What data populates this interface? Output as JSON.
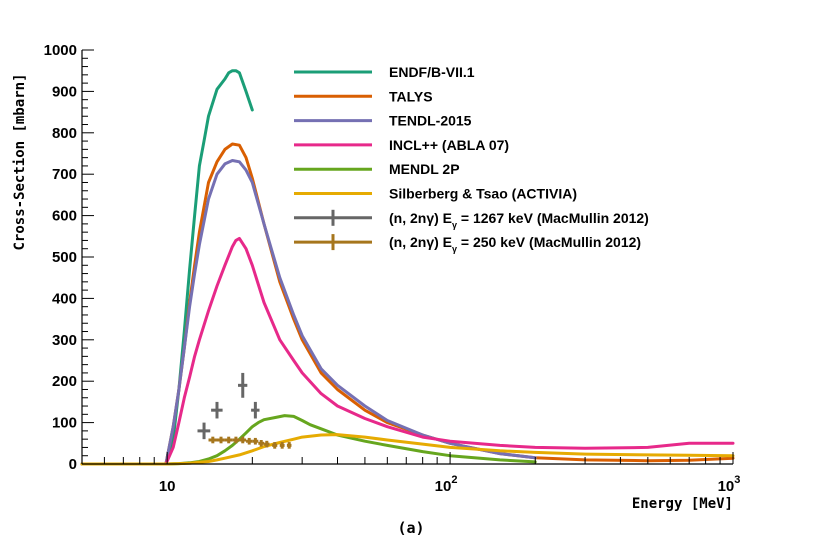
{
  "chart_data": {
    "type": "line",
    "panel_label": "(a)",
    "xlabel": "Energy [MeV]",
    "ylabel": "Cross-Section [mbarn]",
    "xscale": "log",
    "xlim": [
      5,
      1000
    ],
    "ylim": [
      0,
      1000
    ],
    "grid": false,
    "legend_position": "top-center",
    "y_ticks": [
      {
        "value": 0,
        "label": "0"
      },
      {
        "value": 100,
        "label": "100"
      },
      {
        "value": 200,
        "label": "200"
      },
      {
        "value": 300,
        "label": "300"
      },
      {
        "value": 400,
        "label": "400"
      },
      {
        "value": 500,
        "label": "500"
      },
      {
        "value": 600,
        "label": "600"
      },
      {
        "value": 700,
        "label": "700"
      },
      {
        "value": 800,
        "label": "800"
      },
      {
        "value": 900,
        "label": "900"
      },
      {
        "value": 1000,
        "label": "1000"
      }
    ],
    "x_ticks": [
      {
        "value": 10,
        "base": "10",
        "exp": ""
      },
      {
        "value": 100,
        "base": "10",
        "exp": "2"
      },
      {
        "value": 1000,
        "base": "10",
        "exp": "3"
      }
    ],
    "series": [
      {
        "name": "ENDF/B-VII.1",
        "color": "#1b9e77",
        "kind": "line",
        "x": [
          5,
          9.9,
          10.5,
          11,
          11.5,
          12,
          12.5,
          13,
          13.5,
          14,
          15,
          16,
          16.5,
          17,
          17.5,
          18,
          19,
          20
        ],
        "y": [
          0,
          0,
          60,
          180,
          320,
          470,
          600,
          720,
          780,
          840,
          905,
          930,
          945,
          950,
          950,
          945,
          900,
          855
        ]
      },
      {
        "name": "TALYS",
        "color": "#d95f02",
        "kind": "line",
        "x": [
          5,
          9.9,
          10.5,
          11,
          11.5,
          12,
          12.5,
          13,
          14,
          15,
          16,
          17,
          18,
          19,
          20,
          22,
          25,
          28,
          30,
          35,
          40,
          50,
          60,
          80,
          100,
          150,
          200,
          300,
          500,
          700,
          1000
        ],
        "y": [
          0,
          0,
          90,
          180,
          280,
          390,
          480,
          560,
          680,
          730,
          760,
          773,
          770,
          740,
          690,
          580,
          440,
          350,
          300,
          220,
          180,
          130,
          100,
          70,
          50,
          25,
          15,
          10,
          8,
          9,
          14
        ]
      },
      {
        "name": "TENDL-2015",
        "color": "#7570b3",
        "kind": "line",
        "x": [
          5,
          9.9,
          10.5,
          11,
          11.5,
          12,
          12.5,
          13,
          14,
          15,
          16,
          17,
          18,
          19,
          20,
          22,
          25,
          28,
          30,
          35,
          40,
          50,
          60,
          80,
          100,
          150,
          200
        ],
        "y": [
          0,
          0,
          90,
          180,
          280,
          380,
          460,
          530,
          640,
          700,
          725,
          733,
          730,
          710,
          680,
          580,
          450,
          360,
          310,
          230,
          190,
          140,
          105,
          70,
          50,
          25,
          15
        ]
      },
      {
        "name": "INCL++ (ABLA 07)",
        "color": "#e7298a",
        "kind": "line",
        "x": [
          5,
          9.9,
          10.5,
          11,
          11.5,
          12,
          12.5,
          13,
          14,
          15,
          16,
          17,
          17.5,
          18,
          19,
          20,
          22,
          25,
          28,
          30,
          35,
          40,
          50,
          60,
          80,
          100,
          150,
          200,
          300,
          500,
          700,
          1000
        ],
        "y": [
          0,
          0,
          40,
          100,
          160,
          210,
          260,
          300,
          370,
          430,
          480,
          525,
          540,
          545,
          520,
          480,
          390,
          300,
          250,
          220,
          170,
          140,
          110,
          90,
          65,
          55,
          45,
          40,
          38,
          40,
          50,
          50
        ]
      },
      {
        "name": "MENDL 2P",
        "color": "#66a61e",
        "kind": "line",
        "x": [
          5,
          9.9,
          11,
          12,
          13,
          14,
          15,
          16,
          17,
          18,
          19,
          20,
          21,
          22,
          24,
          26,
          28,
          30,
          32,
          35,
          40,
          45,
          50,
          60,
          80,
          100,
          150,
          200
        ],
        "y": [
          0,
          0,
          1,
          3,
          6,
          12,
          20,
          32,
          45,
          60,
          75,
          90,
          100,
          107,
          112,
          117,
          115,
          105,
          95,
          85,
          70,
          62,
          55,
          45,
          30,
          20,
          10,
          5
        ]
      },
      {
        "name": "Silberberg & Tsao (ACTIVIA)",
        "color": "#e6ab02",
        "kind": "line",
        "x": [
          5,
          9.9,
          11,
          12,
          13,
          14,
          15,
          16,
          18,
          20,
          22,
          25,
          28,
          30,
          35,
          40,
          50,
          60,
          80,
          100,
          150,
          200,
          300,
          500,
          700,
          1000
        ],
        "y": [
          0,
          0,
          1,
          2,
          4,
          6,
          10,
          14,
          22,
          32,
          42,
          52,
          60,
          65,
          70,
          71,
          65,
          58,
          48,
          40,
          32,
          28,
          24,
          22,
          21,
          20
        ]
      },
      {
        "name": "(n, 2nγ) E",
        "name_sub": "γ",
        "name_tail": " = 1267 keV (MacMullin 2012)",
        "color": "#666666",
        "kind": "points",
        "x": [
          13.5,
          15,
          18.5,
          20.5
        ],
        "y": [
          80,
          130,
          190,
          130
        ],
        "yerr": [
          20,
          20,
          30,
          20
        ],
        "xerr": [
          0.7,
          0.7,
          0.7,
          0.7
        ]
      },
      {
        "name": "(n, 2nγ) E",
        "name_sub": "γ",
        "name_tail": " = 250 keV (MacMullin 2012)",
        "color": "#a6761d",
        "kind": "points",
        "x": [
          14.5,
          15.5,
          16.5,
          17.5,
          18.5,
          19.5,
          20.5,
          21.5,
          22.5,
          24,
          25.5,
          27
        ],
        "y": [
          58,
          58,
          58,
          58,
          58,
          55,
          55,
          50,
          48,
          45,
          45,
          45
        ],
        "yerr": [
          8,
          8,
          8,
          8,
          8,
          8,
          8,
          8,
          8,
          8,
          8,
          8
        ],
        "xerr": [
          0.5,
          0.5,
          0.5,
          0.5,
          0.5,
          0.5,
          0.5,
          0.5,
          0.5,
          0.5,
          0.5,
          0.5
        ]
      }
    ]
  }
}
